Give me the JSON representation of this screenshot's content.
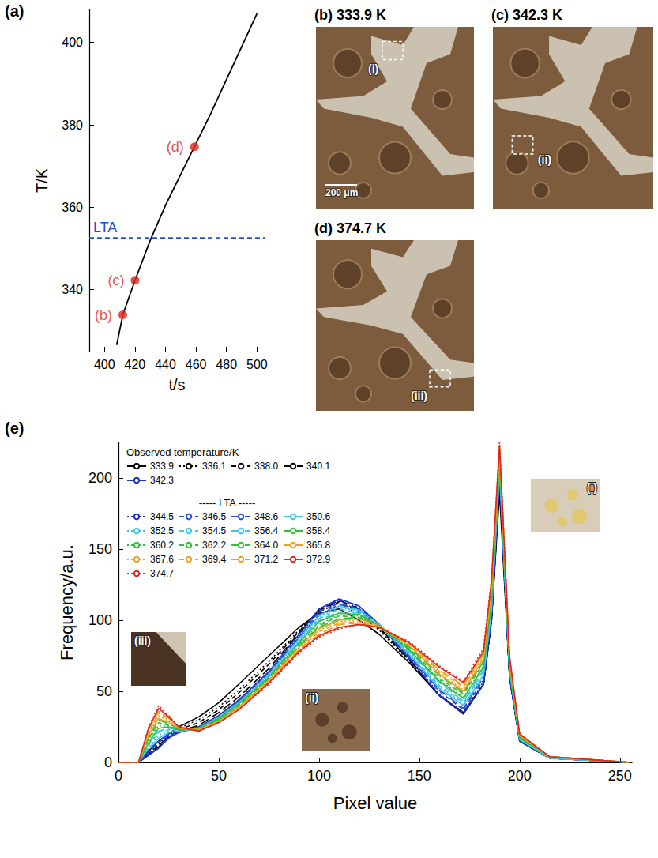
{
  "chart_data": [
    {
      "label": "(a)",
      "type": "line",
      "x_label": "t/s",
      "y_label": "T/K",
      "x": [
        408,
        412,
        420,
        430,
        440,
        450,
        459,
        470,
        480,
        490,
        500
      ],
      "values": [
        326.6,
        333.9,
        342.3,
        352,
        360.5,
        368,
        374.7,
        383,
        391,
        399,
        407
      ],
      "color": "#000000",
      "xlim": [
        390,
        505
      ],
      "xticks": [
        400,
        420,
        440,
        460,
        480,
        500
      ],
      "ylim": [
        325,
        408
      ],
      "yticks": [
        340,
        360,
        380,
        400
      ],
      "grid": false,
      "points": {
        "x": [
          412,
          420,
          459
        ],
        "values": [
          333.9,
          342.3,
          374.7
        ],
        "labels": [
          "(b)",
          "(c)",
          "(d)"
        ],
        "color": "#e0261b",
        "marker": "circle"
      },
      "reference_line": {
        "label": "LTA",
        "value": 352.5,
        "color": "#1f4fd6",
        "line_style": "dashed"
      }
    },
    {
      "label": "(e)",
      "type": "line",
      "x_label": "Pixel value",
      "y_label": "Frequency/a.u.",
      "x": [
        0,
        10,
        15,
        20,
        25,
        30,
        40,
        50,
        60,
        75,
        90,
        100,
        110,
        120,
        130,
        145,
        160,
        172,
        182,
        186,
        190,
        195,
        200,
        215,
        255
      ],
      "xlim": [
        0,
        256
      ],
      "xticks": [
        0,
        50,
        100,
        150,
        200,
        250
      ],
      "ylim": [
        0,
        225
      ],
      "yticks": [
        0,
        50,
        100,
        150,
        200
      ],
      "grid": false,
      "legend": "upper left",
      "legend_groups": [
        {
          "title": "Observed temperature/K",
          "names": [
            "333.9",
            "336.1",
            "338.0",
            "340.1",
            "342.3"
          ]
        },
        {
          "title": "----- LTA -----",
          "names": [
            "344.5",
            "346.5",
            "348.6",
            "350.6",
            "352.5",
            "354.5",
            "356.4",
            "358.4",
            "360.2",
            "362.2",
            "364.0",
            "365.8",
            "367.6",
            "369.4",
            "371.2",
            "372.9",
            "374.7"
          ]
        }
      ],
      "series": [
        {
          "name": "333.9",
          "color": "#000000",
          "line_style": "solid",
          "values": [
            0,
            0,
            8,
            15,
            20,
            25,
            32,
            42,
            55,
            75,
            95,
            105,
            108,
            100,
            90,
            70,
            47,
            35,
            55,
            100,
            190,
            60,
            15,
            3,
            0
          ]
        },
        {
          "name": "336.1",
          "color": "#000000",
          "line_style": "dotted",
          "values": [
            0,
            0,
            7,
            13,
            19,
            24,
            30,
            39,
            51,
            71,
            93,
            106,
            112,
            104,
            93,
            71,
            47,
            35,
            55,
            100,
            195,
            60,
            15,
            3,
            0
          ]
        },
        {
          "name": "338.0",
          "color": "#000000",
          "line_style": "dashed",
          "values": [
            0,
            0,
            6,
            12,
            18,
            23,
            28,
            37,
            49,
            69,
            92,
            107,
            113,
            106,
            94,
            72,
            47,
            35,
            55,
            100,
            197,
            60,
            15,
            3,
            0
          ]
        },
        {
          "name": "340.1",
          "color": "#000000",
          "line_style": "longdash",
          "values": [
            0,
            0,
            6,
            11,
            18,
            22,
            26,
            35,
            46,
            66,
            91,
            107,
            114,
            108,
            95,
            72,
            47,
            34,
            55,
            100,
            198,
            60,
            15,
            3,
            0
          ]
        },
        {
          "name": "342.3",
          "color": "#1c2fc4",
          "line_style": "solid",
          "values": [
            0,
            0,
            5,
            10,
            17,
            21,
            25,
            33,
            44,
            64,
            90,
            108,
            115,
            110,
            97,
            73,
            47,
            34,
            55,
            100,
            200,
            60,
            15,
            3,
            0
          ]
        },
        {
          "name": "344.5",
          "color": "#1c2fc4",
          "line_style": "dotted",
          "values": [
            0,
            0,
            6,
            12,
            18,
            21,
            25,
            33,
            44,
            63,
            89,
            107,
            114,
            109,
            97,
            74,
            48,
            35,
            57,
            102,
            202,
            61,
            15,
            3,
            0
          ]
        },
        {
          "name": "346.5",
          "color": "#2a4fd8",
          "line_style": "dashed",
          "values": [
            0,
            0,
            7,
            14,
            19,
            21,
            25,
            32,
            43,
            63,
            88,
            106,
            112,
            108,
            97,
            74,
            50,
            37,
            58,
            104,
            203,
            62,
            16,
            3,
            0
          ]
        },
        {
          "name": "348.6",
          "color": "#2a4fd8",
          "line_style": "longdash",
          "values": [
            0,
            0,
            9,
            15,
            20,
            22,
            24,
            32,
            43,
            62,
            88,
            104,
            111,
            108,
            97,
            75,
            51,
            38,
            60,
            105,
            205,
            63,
            16,
            3,
            0
          ]
        },
        {
          "name": "350.6",
          "color": "#3fc5e8",
          "line_style": "solid",
          "values": [
            0,
            0,
            10,
            17,
            21,
            22,
            24,
            32,
            42,
            62,
            87,
            103,
            110,
            107,
            97,
            76,
            52,
            40,
            61,
            107,
            206,
            64,
            16,
            3,
            0
          ]
        },
        {
          "name": "352.5",
          "color": "#3fc5e8",
          "line_style": "dotted",
          "values": [
            0,
            0,
            11,
            19,
            22,
            22,
            24,
            32,
            42,
            61,
            86,
            102,
            109,
            106,
            96,
            76,
            53,
            41,
            62,
            109,
            207,
            64,
            16,
            3,
            0
          ]
        },
        {
          "name": "354.5",
          "color": "#3fc5e8",
          "line_style": "dashed",
          "values": [
            0,
            0,
            12,
            21,
            23,
            22,
            24,
            31,
            42,
            61,
            85,
            101,
            108,
            105,
            96,
            77,
            54,
            42,
            64,
            111,
            209,
            65,
            17,
            3,
            0
          ]
        },
        {
          "name": "356.4",
          "color": "#3fc5e8",
          "line_style": "longdash",
          "values": [
            0,
            0,
            13,
            22,
            24,
            23,
            24,
            31,
            41,
            60,
            85,
            100,
            106,
            105,
            96,
            78,
            56,
            43,
            65,
            112,
            210,
            66,
            17,
            3,
            0
          ]
        },
        {
          "name": "358.4",
          "color": "#2fbf3a",
          "line_style": "solid",
          "values": [
            0,
            0,
            14,
            24,
            25,
            23,
            24,
            31,
            41,
            60,
            84,
            99,
            105,
            104,
            96,
            79,
            57,
            45,
            67,
            114,
            212,
            67,
            17,
            4,
            0
          ]
        },
        {
          "name": "360.2",
          "color": "#2fbf3a",
          "line_style": "dotted",
          "values": [
            0,
            0,
            16,
            26,
            25,
            23,
            23,
            30,
            40,
            59,
            83,
            97,
            104,
            103,
            96,
            79,
            58,
            46,
            68,
            116,
            213,
            68,
            18,
            4,
            0
          ]
        },
        {
          "name": "362.2",
          "color": "#2fbf3a",
          "line_style": "dashed",
          "values": [
            0,
            0,
            17,
            28,
            26,
            23,
            23,
            30,
            40,
            59,
            82,
            96,
            103,
            102,
            96,
            80,
            59,
            48,
            70,
            118,
            215,
            69,
            18,
            4,
            0
          ]
        },
        {
          "name": "364.0",
          "color": "#2fbf3a",
          "line_style": "longdash",
          "values": [
            0,
            0,
            18,
            30,
            27,
            24,
            23,
            30,
            39,
            58,
            82,
            95,
            101,
            102,
            96,
            81,
            61,
            49,
            71,
            120,
            216,
            70,
            18,
            4,
            0
          ]
        },
        {
          "name": "365.8",
          "color": "#f0a020",
          "line_style": "solid",
          "values": [
            0,
            0,
            19,
            31,
            28,
            24,
            23,
            29,
            39,
            58,
            81,
            94,
            100,
            101,
            96,
            82,
            62,
            50,
            73,
            121,
            218,
            71,
            19,
            4,
            0
          ]
        },
        {
          "name": "367.6",
          "color": "#f0a020",
          "line_style": "dotted",
          "values": [
            0,
            0,
            20,
            33,
            29,
            24,
            23,
            29,
            39,
            57,
            80,
            93,
            99,
            100,
            95,
            82,
            63,
            51,
            74,
            123,
            219,
            71,
            19,
            4,
            0
          ]
        },
        {
          "name": "369.4",
          "color": "#f0a020",
          "line_style": "dashed",
          "values": [
            0,
            0,
            21,
            35,
            30,
            24,
            23,
            29,
            38,
            57,
            79,
            92,
            98,
            99,
            95,
            83,
            64,
            53,
            76,
            125,
            220,
            72,
            19,
            4,
            0
          ]
        },
        {
          "name": "371.2",
          "color": "#f0a020",
          "line_style": "longdash",
          "values": [
            0,
            0,
            23,
            36,
            31,
            25,
            22,
            29,
            38,
            56,
            79,
            90,
            97,
            98,
            95,
            84,
            65,
            54,
            77,
            126,
            222,
            73,
            19,
            4,
            0
          ]
        },
        {
          "name": "372.9",
          "color": "#e0261b",
          "line_style": "solid",
          "values": [
            0,
            0,
            24,
            38,
            32,
            25,
            22,
            28,
            37,
            56,
            78,
            89,
            95,
            97,
            95,
            84,
            67,
            56,
            78,
            128,
            223,
            74,
            20,
            4,
            0
          ]
        },
        {
          "name": "374.7",
          "color": "#e0261b",
          "line_style": "dotted",
          "values": [
            0,
            0,
            25,
            40,
            33,
            25,
            22,
            28,
            37,
            55,
            77,
            88,
            94,
            97,
            95,
            85,
            68,
            57,
            80,
            130,
            225,
            75,
            20,
            4,
            0
          ]
        }
      ],
      "insets": [
        "(i)",
        "(ii)",
        "(iii)"
      ]
    }
  ],
  "images": [
    {
      "label": "(b)",
      "caption": "333.9 K",
      "region": "(i)",
      "scale_bar": "200 μm"
    },
    {
      "label": "(c)",
      "caption": "342.3 K",
      "region": "(ii)"
    },
    {
      "label": "(d)",
      "caption": "374.7 K",
      "region": "(iii)"
    }
  ]
}
